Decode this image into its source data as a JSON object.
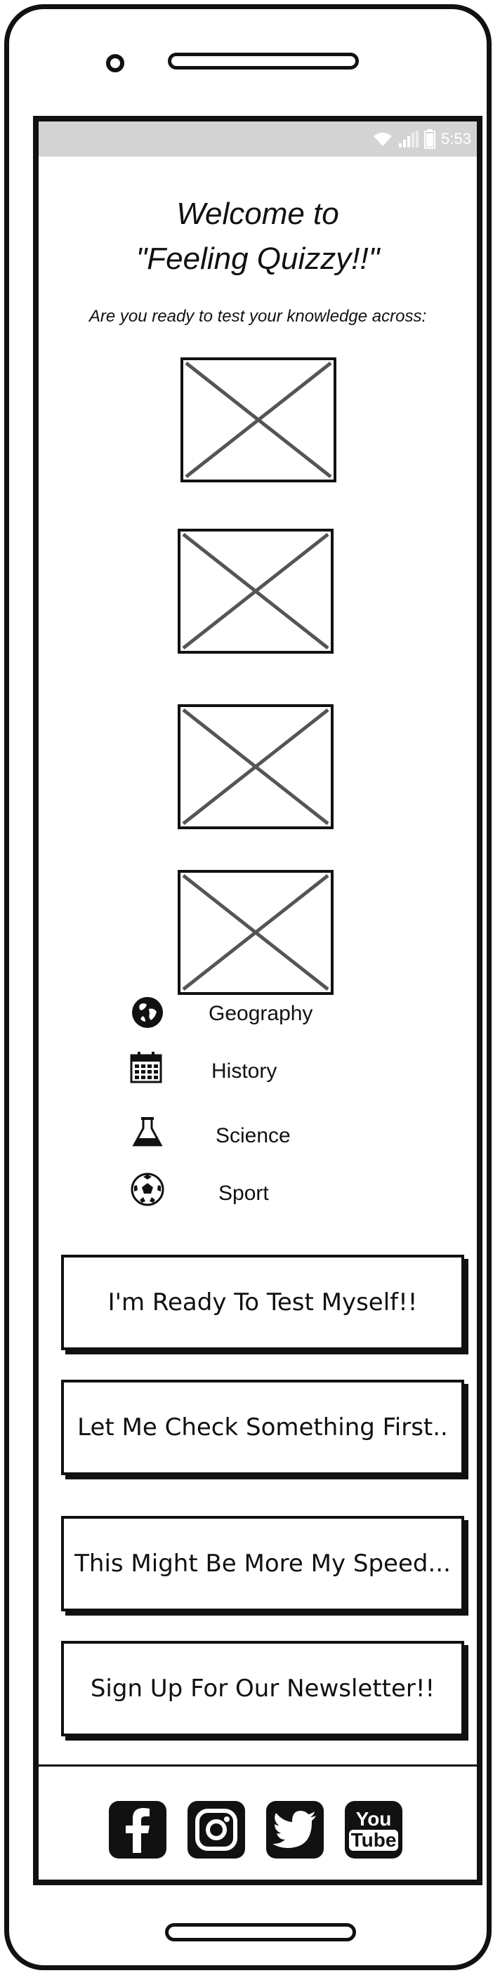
{
  "status_bar": {
    "time": "5:53",
    "icons": [
      "wifi-icon",
      "signal-icon",
      "battery-icon"
    ]
  },
  "header": {
    "title_line1": "Welcome to",
    "title_line2": "\"Feeling Quizzy!!\""
  },
  "intro": {
    "text": "Are you ready to test your knowledge across:"
  },
  "placeholders": [
    "image-placeholder",
    "image-placeholder",
    "image-placeholder",
    "image-placeholder"
  ],
  "categories": [
    {
      "label": "Geography",
      "icon": "globe-icon"
    },
    {
      "label": "History",
      "icon": "calendar-icon"
    },
    {
      "label": "Science",
      "icon": "flask-icon"
    },
    {
      "label": "Sport",
      "icon": "soccer-ball-icon"
    }
  ],
  "buttons": [
    {
      "label": "I'm Ready To Test Myself!!"
    },
    {
      "label": "Let Me Check Something First.."
    },
    {
      "label": "This Might Be More My Speed..."
    },
    {
      "label": "Sign Up For Our Newsletter!!"
    }
  ],
  "social": [
    {
      "icon": "facebook-icon"
    },
    {
      "icon": "instagram-icon"
    },
    {
      "icon": "twitter-icon"
    },
    {
      "icon": "youtube-icon",
      "label_top": "You",
      "label_bottom": "Tube"
    }
  ],
  "colors": {
    "frame": "#111111",
    "status_bar": "#d3d3d3",
    "background": "#ffffff",
    "placeholder_cross": "#555555"
  }
}
